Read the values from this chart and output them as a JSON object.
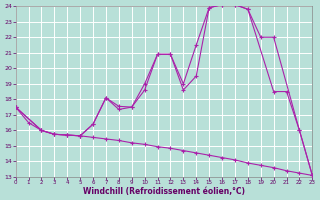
{
  "xlabel": "Windchill (Refroidissement éolien,°C)",
  "background_color": "#b8e0d8",
  "grid_color": "#ffffff",
  "line_color": "#aa22aa",
  "xlim": [
    0,
    23
  ],
  "ylim": [
    13,
    24
  ],
  "xticks": [
    0,
    1,
    2,
    3,
    4,
    5,
    6,
    7,
    8,
    9,
    10,
    11,
    12,
    13,
    14,
    15,
    16,
    17,
    18,
    19,
    20,
    21,
    22,
    23
  ],
  "yticks": [
    13,
    14,
    15,
    16,
    17,
    18,
    19,
    20,
    21,
    22,
    23,
    24
  ],
  "line1_x": [
    0,
    1,
    2,
    3,
    4,
    5,
    6,
    7,
    8,
    9,
    10,
    11,
    12,
    13,
    14,
    15,
    16,
    17,
    18,
    19,
    20,
    21,
    22,
    23
  ],
  "line1_y": [
    17.5,
    16.5,
    16.0,
    15.75,
    15.7,
    15.65,
    15.55,
    15.45,
    15.35,
    15.2,
    15.1,
    14.95,
    14.85,
    14.7,
    14.55,
    14.4,
    14.25,
    14.1,
    13.9,
    13.75,
    13.6,
    13.4,
    13.25,
    13.1
  ],
  "line2_x": [
    0,
    2,
    3,
    4,
    5,
    6,
    7,
    8,
    9,
    10,
    11,
    12,
    13,
    14,
    15,
    16,
    17,
    18,
    19,
    20,
    22,
    23
  ],
  "line2_y": [
    17.5,
    16.0,
    15.75,
    15.7,
    15.65,
    16.4,
    18.1,
    17.55,
    17.5,
    19.0,
    20.9,
    20.9,
    19.0,
    21.5,
    23.9,
    24.1,
    24.1,
    23.8,
    22.0,
    22.0,
    16.0,
    13.1
  ],
  "line3_x": [
    0,
    2,
    3,
    4,
    5,
    6,
    7,
    8,
    9,
    10,
    11,
    12,
    13,
    14,
    15,
    16,
    17,
    18,
    20,
    21,
    22,
    23
  ],
  "line3_y": [
    17.5,
    16.0,
    15.75,
    15.7,
    15.65,
    16.4,
    18.1,
    17.35,
    17.5,
    18.6,
    20.9,
    20.9,
    18.6,
    19.5,
    23.9,
    24.1,
    24.1,
    23.8,
    18.5,
    18.5,
    16.0,
    13.1
  ]
}
